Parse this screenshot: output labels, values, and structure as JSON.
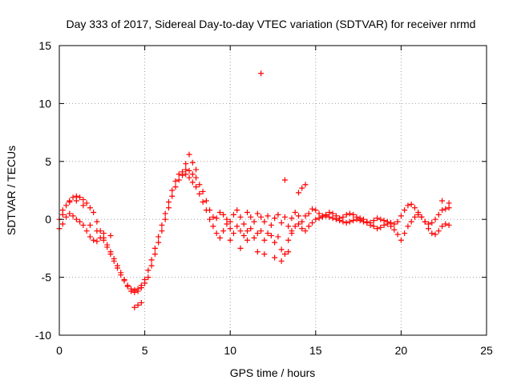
{
  "chart_data": {
    "type": "scatter",
    "title": "Day 333 of 2017, Sidereal Day-to-day VTEC variation (SDTVAR) for receiver nrmd",
    "xlabel": "GPS time / hours",
    "ylabel": "SDTVAR / TECUs",
    "xlim": [
      0,
      25
    ],
    "ylim": [
      -10,
      15
    ],
    "xticks": [
      0,
      5,
      10,
      15,
      20,
      25
    ],
    "yticks": [
      -10,
      -5,
      0,
      5,
      10,
      15
    ],
    "xtick_labels": [
      "0",
      "5",
      "10",
      "15",
      "20",
      "25"
    ],
    "ytick_labels": [
      "-10",
      "-5",
      "0",
      "5",
      "10",
      "15"
    ],
    "grid": true,
    "marker": "+",
    "color": "#ff0000",
    "series": [
      {
        "name": "SDTVAR",
        "x": [
          0.0,
          0.2,
          0.4,
          0.6,
          0.8,
          1.0,
          1.2,
          1.4,
          1.6,
          1.8,
          2.0,
          2.2,
          2.4,
          2.6,
          2.8,
          3.0,
          3.2,
          3.4,
          3.6,
          3.8,
          4.0,
          4.2,
          4.4,
          4.6,
          4.8,
          5.0,
          5.2,
          5.4,
          5.6,
          5.8,
          6.0,
          6.2,
          6.4,
          6.6,
          6.8,
          7.0,
          7.2,
          7.4,
          7.6,
          7.8,
          8.0,
          8.2,
          8.4,
          8.6,
          8.8,
          9.0,
          9.2,
          9.4,
          9.6,
          9.8,
          10.0,
          10.2,
          10.4,
          10.6,
          10.8,
          11.0,
          11.2,
          11.4,
          11.6,
          11.8,
          12.0,
          12.2,
          12.4,
          12.6,
          12.8,
          13.0,
          13.2,
          13.4,
          13.6,
          13.8,
          14.0,
          14.2,
          14.4,
          14.6,
          14.8,
          15.0,
          15.2,
          15.4,
          15.6,
          15.8,
          16.0,
          16.2,
          16.4,
          16.6,
          16.8,
          17.0,
          17.2,
          17.4,
          17.6,
          17.8,
          18.0,
          18.2,
          18.4,
          18.6,
          18.8,
          19.0,
          19.2,
          19.4,
          19.6,
          19.8,
          20.0,
          20.2,
          20.4,
          20.6,
          20.8,
          21.0,
          21.2,
          21.4,
          21.6,
          21.8,
          22.0,
          22.2,
          22.4,
          22.6,
          22.8
        ],
        "y": [
          0.0,
          0.8,
          1.2,
          1.6,
          1.9,
          2.0,
          1.9,
          1.7,
          1.4,
          1.0,
          0.6,
          -0.2,
          -1.0,
          -1.6,
          -2.2,
          -2.8,
          -3.4,
          -4.0,
          -4.6,
          -5.2,
          -5.7,
          -6.0,
          -6.1,
          -6.0,
          -5.7,
          -5.2,
          -4.4,
          -3.5,
          -2.5,
          -1.5,
          -0.5,
          0.5,
          1.5,
          2.5,
          3.3,
          3.9,
          4.1,
          4.3,
          4.2,
          3.9,
          3.6,
          3.0,
          2.4,
          1.6,
          0.8,
          0.2,
          0.1,
          0.6,
          0.4,
          0.0,
          -0.2,
          0.4,
          0.8,
          0.2,
          -0.4,
          0.6,
          0.2,
          -0.2,
          0.5,
          0.2,
          -0.2,
          0.3,
          -0.5,
          0.1,
          0.4,
          -0.3,
          0.2,
          -0.6,
          0.1,
          0.6,
          0.3,
          -0.2,
          0.3,
          0.5,
          0.9,
          0.8,
          0.5,
          0.3,
          0.4,
          0.6,
          0.5,
          0.3,
          0.1,
          0.2,
          0.4,
          0.5,
          0.4,
          0.2,
          0.1,
          0.0,
          -0.2,
          -0.3,
          -0.1,
          0.1,
          0.0,
          -0.1,
          -0.2,
          -0.3,
          -0.4,
          -0.2,
          0.3,
          0.8,
          1.2,
          1.3,
          1.0,
          0.6,
          0.2,
          -0.2,
          -0.4,
          -0.3,
          0.0,
          0.4,
          0.8,
          0.9,
          1.0
        ]
      },
      {
        "name": "SDTVAR",
        "x": [
          0.0,
          0.2,
          0.4,
          0.6,
          0.8,
          1.0,
          1.2,
          1.4,
          1.6,
          1.8,
          2.0,
          2.2,
          2.4,
          2.6,
          2.8,
          3.0,
          3.2,
          3.4,
          3.6,
          3.8,
          4.0,
          4.2,
          4.4,
          4.6,
          4.8,
          5.0,
          5.2,
          5.4,
          5.6,
          5.8,
          6.0,
          6.2,
          6.4,
          6.6,
          6.8,
          7.0,
          7.2,
          7.4,
          7.6,
          7.8,
          8.0,
          8.2,
          8.4,
          8.6,
          8.8,
          9.0,
          9.2,
          9.4,
          9.6,
          9.8,
          10.0,
          10.2,
          10.4,
          10.6,
          10.8,
          11.0,
          11.2,
          11.4,
          11.6,
          11.8,
          12.0,
          12.2,
          12.4,
          12.6,
          12.8,
          13.0,
          13.2,
          13.4,
          13.6,
          13.8,
          14.0,
          14.2,
          14.4,
          14.6,
          14.8,
          15.0,
          15.2,
          15.4,
          15.6,
          15.8,
          16.0,
          16.2,
          16.4,
          16.6,
          16.8,
          17.0,
          17.2,
          17.4,
          17.6,
          17.8,
          18.0,
          18.2,
          18.4,
          18.6,
          18.8,
          19.0,
          19.2,
          19.4,
          19.6,
          19.8,
          20.0,
          20.2,
          20.4,
          20.6,
          20.8,
          21.0,
          21.2,
          21.4,
          21.6,
          21.8,
          22.0,
          22.2,
          22.4,
          22.6,
          22.8
        ],
        "y": [
          -0.8,
          -0.4,
          0.2,
          0.5,
          0.3,
          0.0,
          -0.2,
          -0.5,
          -1.0,
          -1.5,
          -1.8,
          -1.9,
          -1.6,
          -1.8,
          -2.4,
          -3.0,
          -3.6,
          -4.2,
          -4.8,
          -5.3,
          -5.8,
          -6.2,
          -6.3,
          -6.2,
          -5.9,
          -5.5,
          -5.0,
          -4.0,
          -3.0,
          -2.0,
          -1.0,
          0.0,
          1.0,
          2.0,
          2.8,
          3.4,
          3.8,
          3.9,
          3.6,
          3.2,
          2.8,
          2.2,
          1.5,
          0.8,
          0.0,
          -0.6,
          -1.2,
          -1.6,
          -1.0,
          -0.4,
          -0.8,
          -1.2,
          -0.6,
          -1.0,
          -1.4,
          -1.0,
          -0.8,
          -1.6,
          -1.2,
          -1.0,
          -1.8,
          -1.2,
          -1.4,
          -2.0,
          -1.5,
          -2.6,
          -3.0,
          -1.8,
          -1.0,
          -0.6,
          -0.4,
          -0.8,
          -1.0,
          -0.6,
          -0.3,
          0.0,
          0.1,
          0.2,
          0.3,
          0.2,
          0.1,
          0.0,
          -0.1,
          -0.2,
          -0.3,
          -0.2,
          -0.1,
          0.0,
          -0.1,
          -0.2,
          -0.3,
          -0.5,
          -0.6,
          -0.8,
          -0.7,
          -0.5,
          -0.4,
          -0.6,
          -0.9,
          -1.3,
          -1.8,
          -1.2,
          -0.6,
          -0.2,
          0.2,
          0.4,
          0.2,
          -0.2,
          -0.8,
          -1.2,
          -1.3,
          -1.0,
          -0.6,
          -0.4,
          -0.5
        ]
      },
      {
        "name": "SDTVAR",
        "x": [
          0.2,
          0.6,
          1.0,
          1.4,
          1.8,
          2.2,
          2.6,
          3.0,
          4.4,
          4.6,
          4.8,
          7.4,
          7.6,
          7.8,
          8.0,
          10.0,
          10.6,
          11.0,
          11.6,
          11.8,
          12.0,
          12.6,
          13.0,
          13.2,
          13.4,
          13.6,
          14.0,
          14.2,
          14.4,
          22.4,
          22.8
        ],
        "y": [
          0.4,
          1.5,
          1.6,
          1.2,
          -0.5,
          -1.0,
          -1.2,
          -1.4,
          -7.6,
          -7.4,
          -7.2,
          4.8,
          5.6,
          4.9,
          4.3,
          -1.8,
          -2.5,
          -1.8,
          -2.8,
          12.6,
          -3.0,
          -3.3,
          -3.6,
          3.4,
          -2.8,
          -1.2,
          2.3,
          2.7,
          3.0,
          1.6,
          1.4
        ]
      }
    ]
  }
}
